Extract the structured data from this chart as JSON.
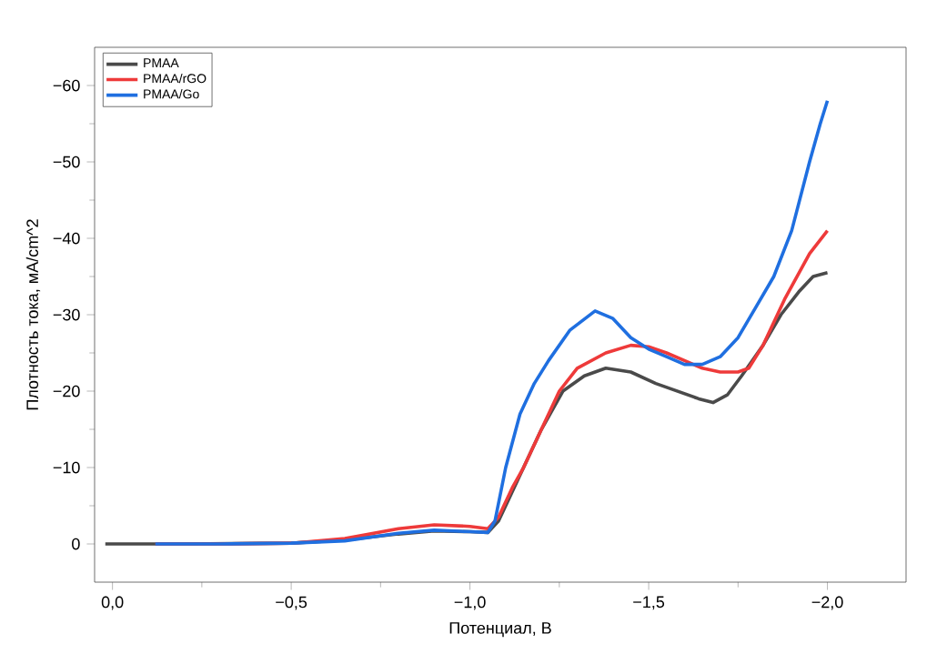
{
  "chart_data": {
    "type": "line",
    "xlabel": "Потенциал, В",
    "ylabel": "Плотность тока, мА/cm^2",
    "xlim": [
      0.05,
      -2.22
    ],
    "ylim": [
      5,
      -65
    ],
    "xticks": [
      {
        "value": 0,
        "label": "0,0"
      },
      {
        "value": -0.5,
        "label": "−0,5"
      },
      {
        "value": -1.0,
        "label": "−1,0"
      },
      {
        "value": -1.5,
        "label": "−1,5"
      },
      {
        "value": -2.0,
        "label": "−2,0"
      }
    ],
    "yticks": [
      {
        "value": 0,
        "label": "0"
      },
      {
        "value": -10,
        "label": "−10"
      },
      {
        "value": -20,
        "label": "−20"
      },
      {
        "value": -30,
        "label": "−30"
      },
      {
        "value": -40,
        "label": "−40"
      },
      {
        "value": -50,
        "label": "−50"
      },
      {
        "value": -60,
        "label": "−60"
      }
    ],
    "legend": "top left",
    "grid": false,
    "marker": "none",
    "line_style": "solid",
    "series": [
      {
        "name": "PMAA",
        "color": "#4a4a4a",
        "x": [
          0.02,
          -0.2,
          -0.5,
          -0.65,
          -0.8,
          -0.9,
          -1.0,
          -1.05,
          -1.08,
          -1.12,
          -1.15,
          -1.2,
          -1.26,
          -1.32,
          -1.38,
          -1.45,
          -1.52,
          -1.58,
          -1.64,
          -1.68,
          -1.72,
          -1.76,
          -1.82,
          -1.87,
          -1.92,
          -1.96,
          -2.0
        ],
        "values": [
          0,
          0,
          -0.1,
          -0.5,
          -1.3,
          -1.7,
          -1.6,
          -1.5,
          -3,
          -7,
          -10,
          -15,
          -20,
          -22,
          -23,
          -22.5,
          -21,
          -20,
          -19,
          -18.5,
          -19.5,
          -22,
          -26,
          -30,
          -33,
          -35,
          -35.5
        ]
      },
      {
        "name": "PMAA/rGO",
        "color": "#ee3a3a",
        "x": [
          -0.12,
          -0.3,
          -0.5,
          -0.65,
          -0.8,
          -0.9,
          -1.0,
          -1.05,
          -1.08,
          -1.12,
          -1.15,
          -1.2,
          -1.25,
          -1.3,
          -1.38,
          -1.45,
          -1.5,
          -1.55,
          -1.6,
          -1.65,
          -1.7,
          -1.75,
          -1.78,
          -1.82,
          -1.88,
          -1.95,
          -2.0
        ],
        "values": [
          0,
          0,
          -0.1,
          -0.7,
          -2.0,
          -2.5,
          -2.3,
          -2.0,
          -3.5,
          -7.5,
          -10,
          -15,
          -20,
          -23,
          -25,
          -26,
          -25.8,
          -25,
          -24,
          -23,
          -22.5,
          -22.5,
          -23,
          -26,
          -32,
          -38,
          -41
        ]
      },
      {
        "name": "PMAA/Go",
        "color": "#1f6fe0",
        "x": [
          -0.12,
          -0.3,
          -0.5,
          -0.65,
          -0.8,
          -0.9,
          -1.0,
          -1.05,
          -1.07,
          -1.1,
          -1.14,
          -1.18,
          -1.22,
          -1.28,
          -1.35,
          -1.4,
          -1.45,
          -1.5,
          -1.55,
          -1.6,
          -1.65,
          -1.7,
          -1.75,
          -1.8,
          -1.85,
          -1.9,
          -1.95,
          -1.98,
          -2.0
        ],
        "values": [
          0,
          0,
          -0.1,
          -0.4,
          -1.4,
          -1.8,
          -1.6,
          -1.5,
          -3,
          -10,
          -17,
          -21,
          -24,
          -28,
          -30.5,
          -29.5,
          -27,
          -25.5,
          -24.5,
          -23.5,
          -23.5,
          -24.5,
          -27,
          -31,
          -35,
          -41,
          -50,
          -55,
          -58
        ]
      }
    ]
  }
}
